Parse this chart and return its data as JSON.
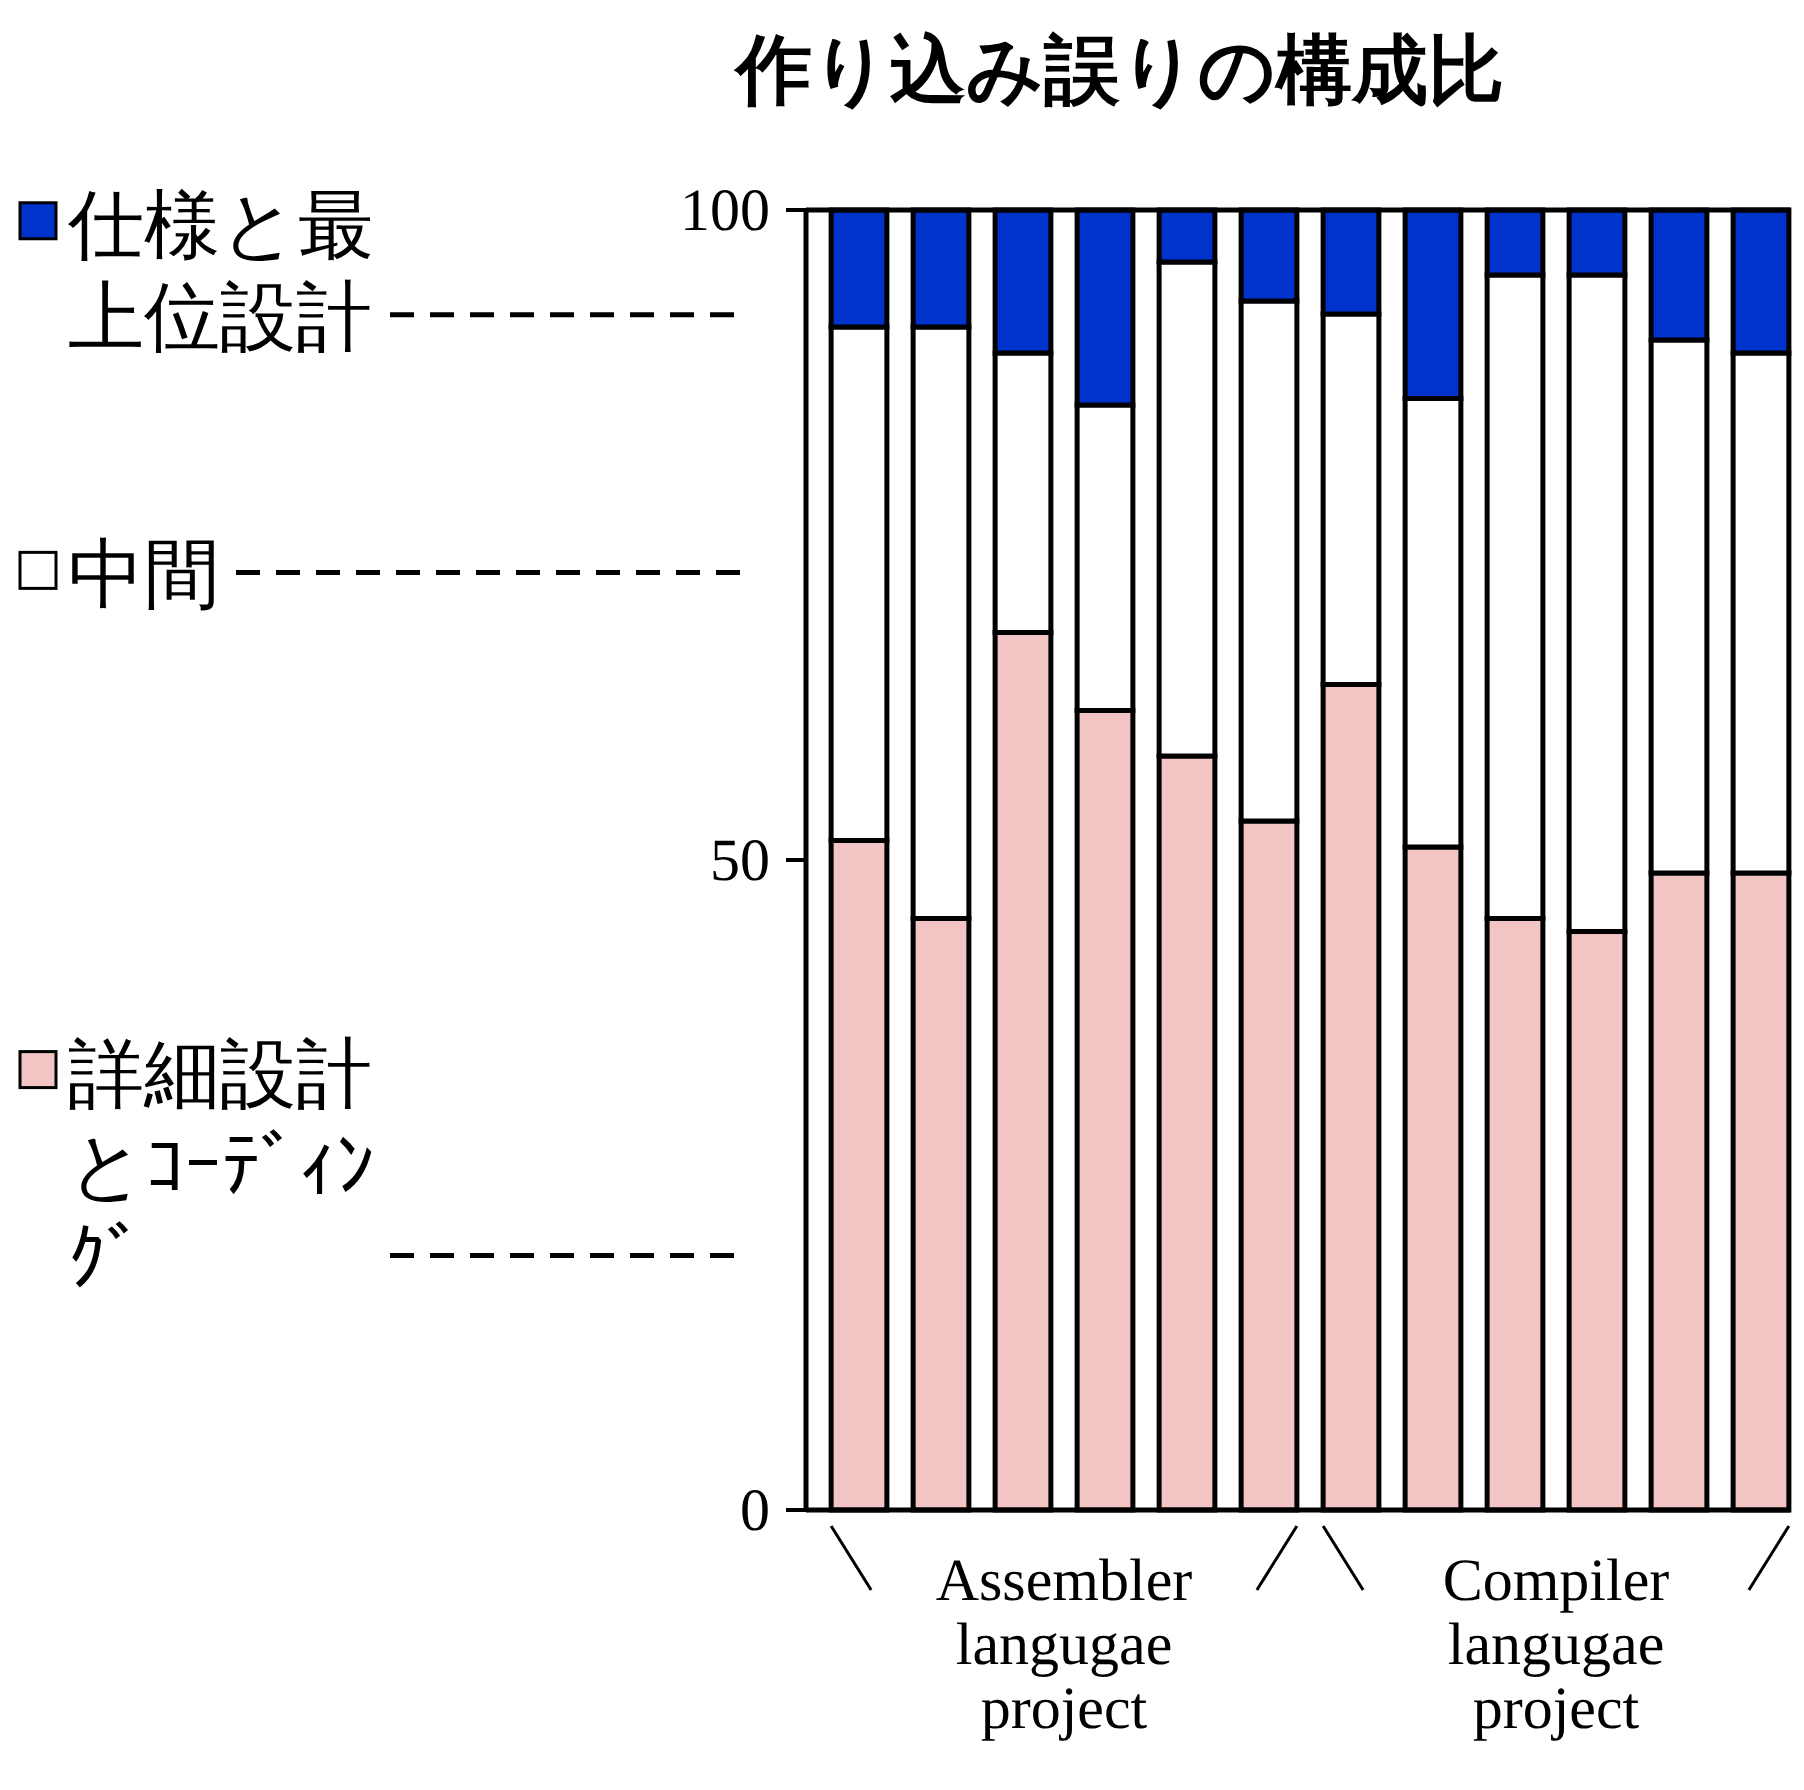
{
  "chart_data": {
    "type": "bar",
    "title": "作り込み誤りの構成比",
    "stacked": true,
    "categories": [
      null,
      null,
      null,
      null,
      null,
      null,
      null,
      null,
      null,
      null,
      null,
      null
    ],
    "series": [
      {
        "name": "詳細設計とｺｰﾃﾞｨﾝｸﾞ",
        "color": "#f2c4c4",
        "values": [
          51.5,
          45.5,
          67.5,
          61.5,
          58,
          53,
          63.5,
          51,
          45.5,
          44.5,
          49,
          49
        ]
      },
      {
        "name": "中間",
        "color": "#ffffff",
        "values": [
          39.5,
          45.5,
          21.5,
          23.5,
          38,
          40,
          28.5,
          34.5,
          49.5,
          50.5,
          41,
          40
        ]
      },
      {
        "name": "仕様と最上位設計",
        "color": "#0033cc",
        "values": [
          9,
          9,
          11,
          15,
          4,
          7,
          8,
          14.5,
          5,
          5,
          10,
          11
        ]
      }
    ],
    "ylim": [
      0,
      100
    ],
    "yticks": [
      0,
      50,
      100
    ],
    "grid": false,
    "legend": "left",
    "annotations": [
      "Assembler langugae project",
      "Compiler langugae project"
    ]
  }
}
